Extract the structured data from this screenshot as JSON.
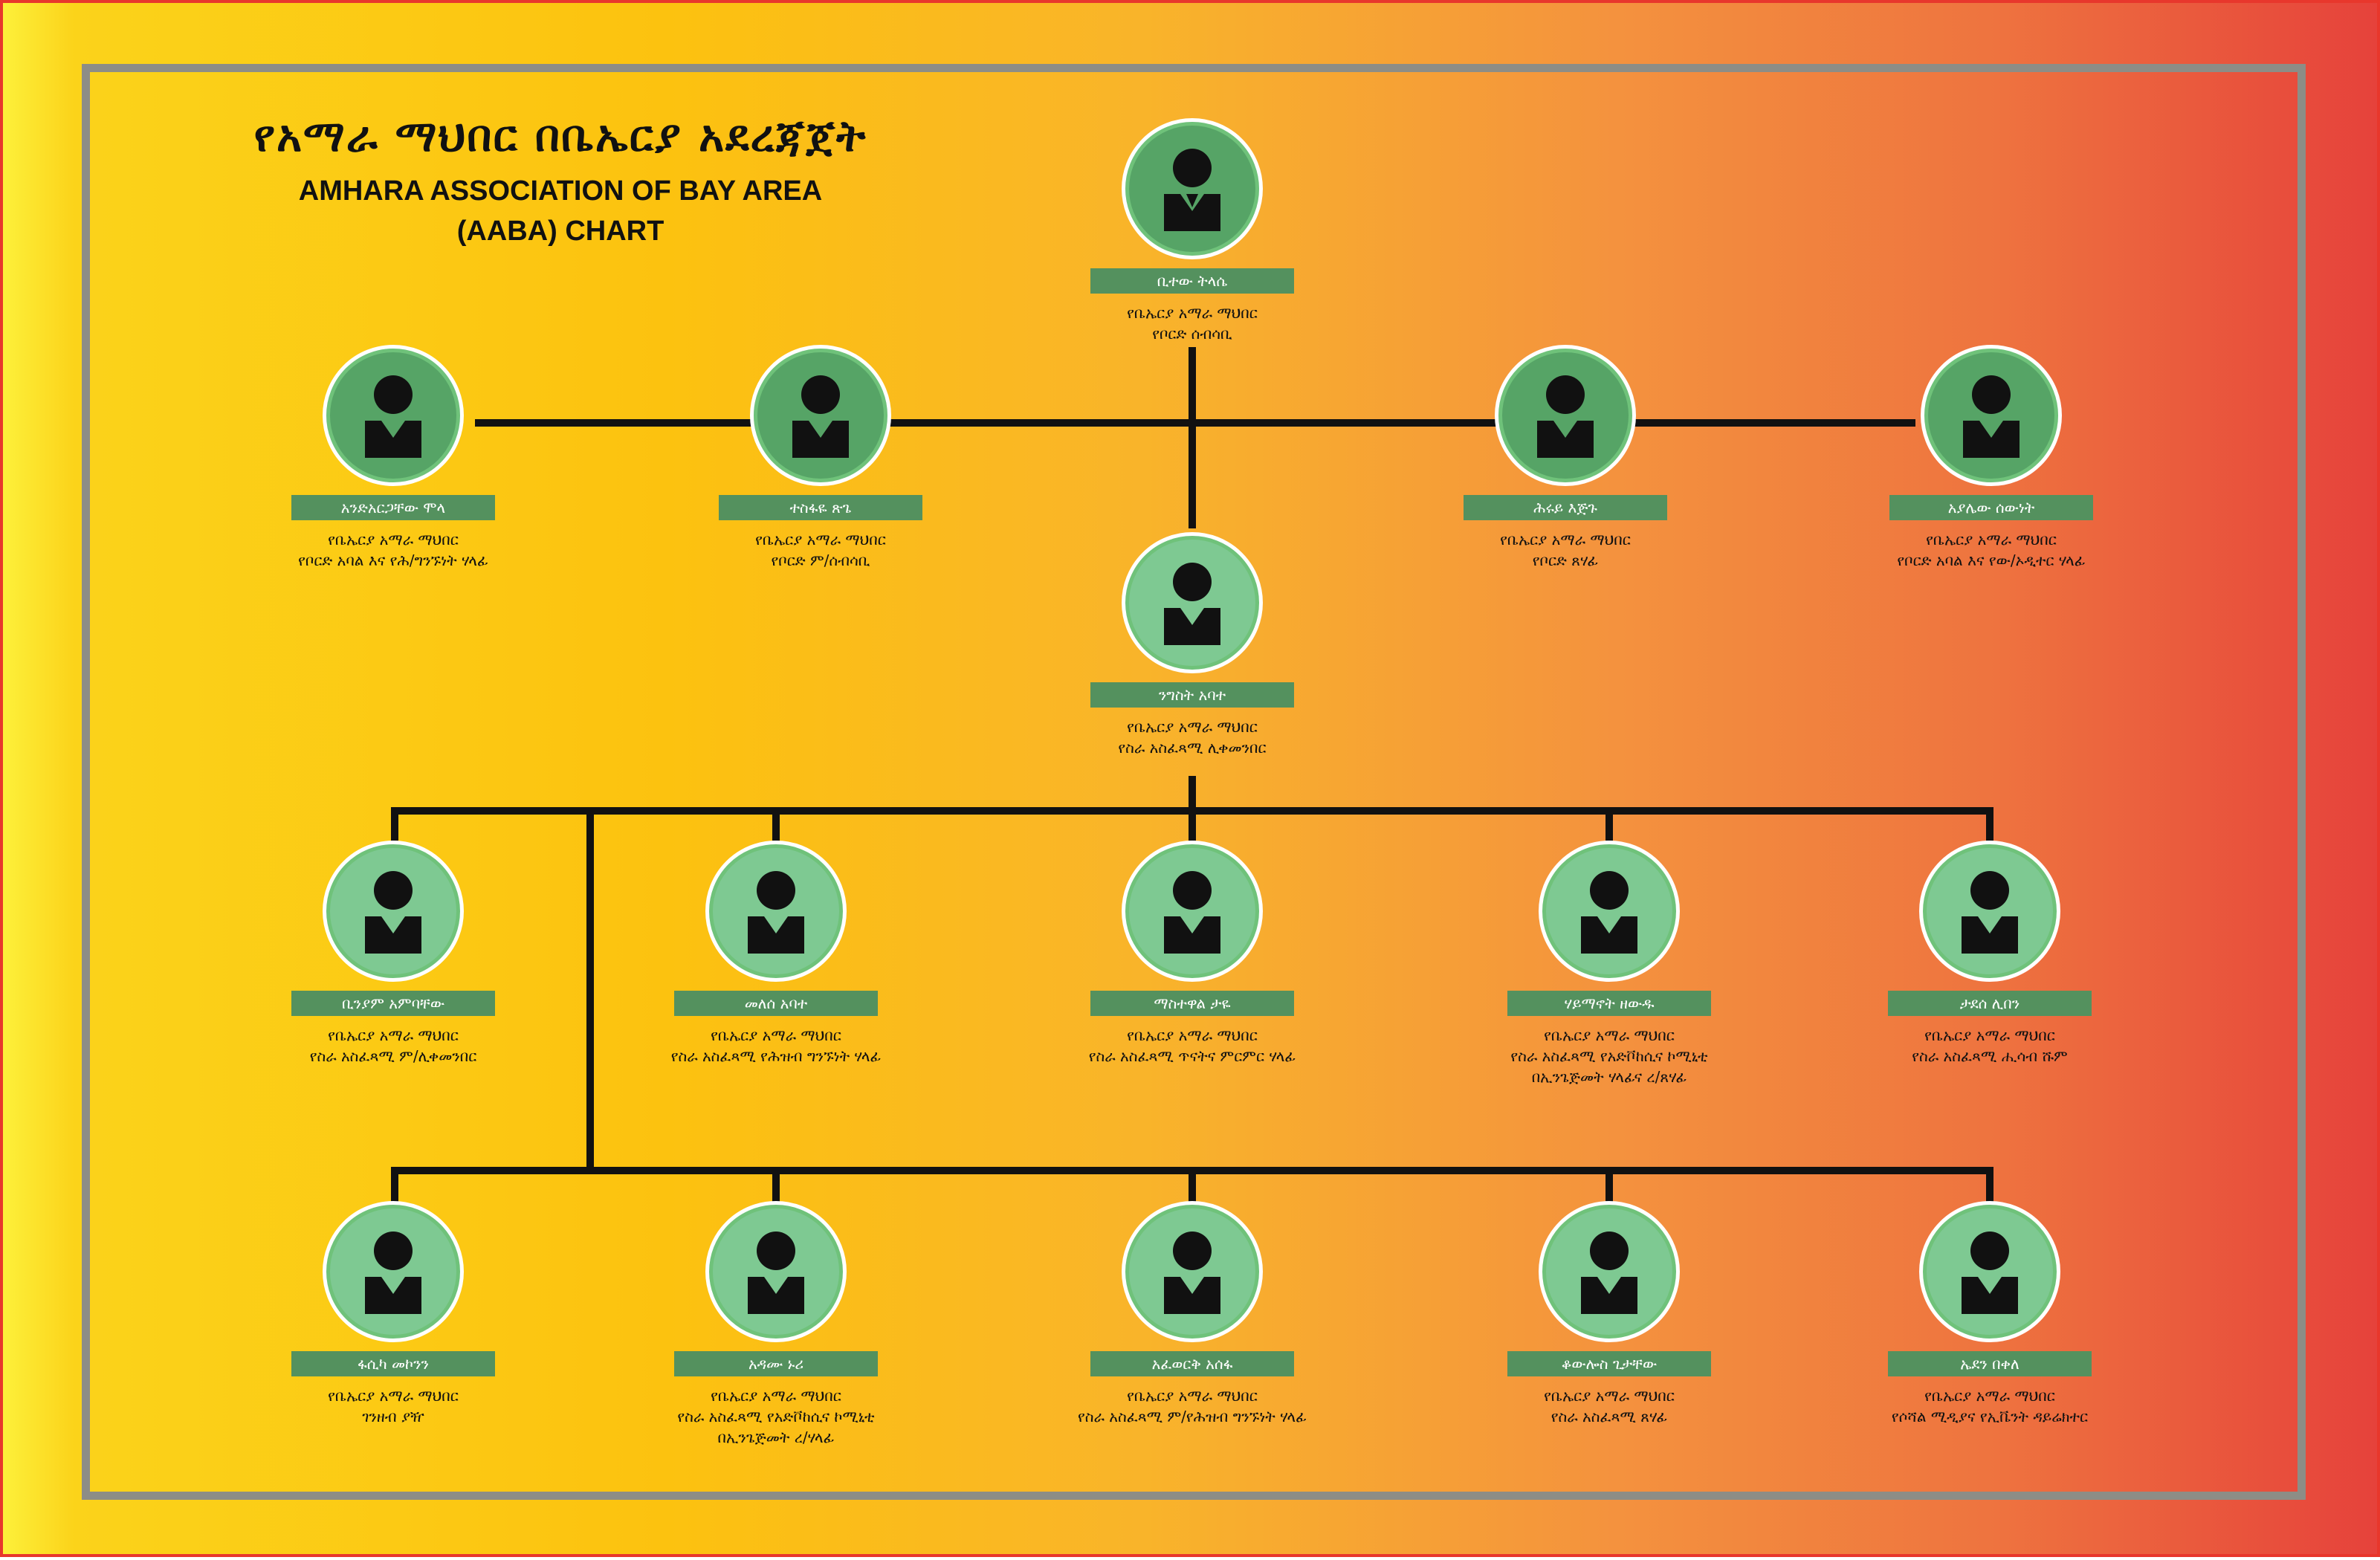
{
  "title": {
    "amharic": "የአማራ ማህበር በቤኤርያ አደረጃጀት",
    "english_line1": "AMHARA ASSOCIATION OF BAY AREA",
    "english_line2": "(AABA) CHART"
  },
  "colors": {
    "frame": "#8d8d86",
    "name_bar": "#54915e",
    "avatar_dark": "#56a466",
    "avatar_light": "#7ec992",
    "lines": "#111111"
  },
  "chairman": {
    "name": "ቢተው ትላሴ",
    "role_line1": "የቤኤርያ አማራ ማህበር",
    "role_line2": "የቦርድ ሰብሳቢ",
    "avatar_icon": "person-icon"
  },
  "board": [
    {
      "name": "አንድአርጋቸው ሞላ",
      "role_line1": "የቤኤርያ አማራ ማህበር",
      "role_line2": "የቦርድ አባል እና የሕ/ግንኙነት ሃላፊ"
    },
    {
      "name": "ተስፋዬ ጽጌ",
      "role_line1": "የቤኤርያ አማራ ማህበር",
      "role_line2": "የቦርድ ም/ሰብሳቢ"
    },
    {
      "name": "ሕሩይ እጅጉ",
      "role_line1": "የቤኤርያ አማራ ማህበር",
      "role_line2": "የቦርድ ጸሃፊ"
    },
    {
      "name": "አያሌው ሰውነት",
      "role_line1": "የቤኤርያ አማራ ማህበር",
      "role_line2": "የቦርድ አባል እና የው/ኦዲተር ሃላፊ"
    }
  ],
  "executive": {
    "name": "ንግስት አባተ",
    "role_line1": "የቤኤርያ አማራ ማህበር",
    "role_line2": "የስራ አስፈጻሚ ሊቀመንበር"
  },
  "row3": [
    {
      "name": "ቢንያም አምባቸው",
      "role_line1": "የቤኤርያ አማራ ማህበር",
      "role_line2": "የስራ አስፈጻሚ ም/ሊቀመንበር",
      "role_line3": ""
    },
    {
      "name": "መለሰ አባተ",
      "role_line1": "የቤኤርያ አማራ ማህበር",
      "role_line2": "የስራ አስፈጻሚ የሕዝብ ግንኙነት ሃላፊ",
      "role_line3": ""
    },
    {
      "name": "ማስተዋል ታዬ",
      "role_line1": "የቤኤርያ አማራ ማህበር",
      "role_line2": "የስራ አስፈጻሚ ጥናትና ምርምር ሃላፊ",
      "role_line3": ""
    },
    {
      "name": "ሃይማኖት ዘውዱ",
      "role_line1": "የቤኤርያ አማራ ማህበር",
      "role_line2": "የስራ አስፈጻሚ የአድቮከሲና ኮሚኒቲ",
      "role_line3": "በኢንጌጅመት ሃላፊና ረ/ጸሃፊ"
    },
    {
      "name": "ታደሰ ሊበን",
      "role_line1": "የቤኤርያ አማራ ማህበር",
      "role_line2": "የስራ አስፈጻሚ ሒሳብ ሹም",
      "role_line3": ""
    }
  ],
  "row4": [
    {
      "name": "ፋሲካ መኮንን",
      "role_line1": "የቤኤርያ አማራ ማህበር",
      "role_line2": "ገንዘብ ያዥ",
      "role_line3": ""
    },
    {
      "name": "አዳሙ ኑሪ",
      "role_line1": "የቤኤርያ አማራ ማህበር",
      "role_line2": "የስራ አስፈጻሚ የአድቮከሲና ኮሚኒቲ",
      "role_line3": "በኢንጌጅመት ረ/ሃላፊ"
    },
    {
      "name": "አፈወርቅ አሰፋ",
      "role_line1": "የቤኤርያ አማራ ማህበር",
      "role_line2": "የስራ አስፈጻሚ ም/የሕዝብ ግንኙነት ሃላፊ",
      "role_line3": ""
    },
    {
      "name": "ቆውሎስ ጊታቸው",
      "role_line1": "የቤኤርያ አማራ ማህበር",
      "role_line2": "የስራ አስፈጻሚ ጸሃፊ",
      "role_line3": ""
    },
    {
      "name": "ኤደን በቀለ",
      "role_line1": "የቤኤርያ አማራ ማህበር",
      "role_line2": "የሶሻል ሚዲያና የኢቬንት ዳይሬክተር",
      "role_line3": ""
    }
  ]
}
